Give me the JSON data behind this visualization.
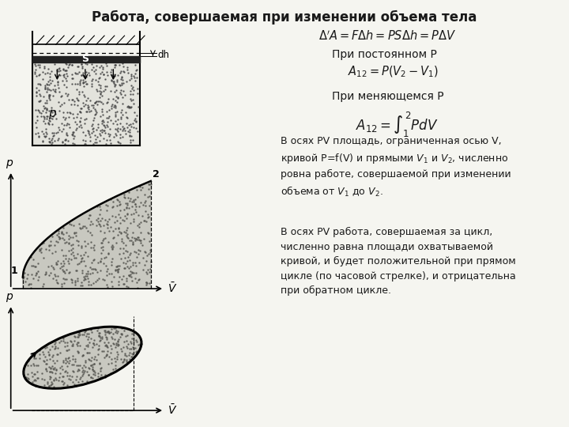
{
  "title": "Работа, совершаемая при изменении объема тела",
  "title_fontsize": 12,
  "bg_color": "#f5f5f0",
  "text_color": "#1a1a1a",
  "formula1": "$\\Delta'A = F\\Delta h = PS\\Delta h = P\\Delta V$",
  "label_const_p": "При постоянном Р",
  "formula2": "$A_{12} = P(V_2 - V_1)$",
  "label_var_p": "При меняющемся Р",
  "formula3": "$A_{12} = \\int_{1}^{2} PdV$",
  "text1": "В осях PV площадь, ограниченная осью V,\nкривой P=f(V) и прямыми $V_1$ и $V_2$, численно\nровна работе, совершаемой при изменении\nобъема от $V_1$ до $V_2$.",
  "text2": "В осях PV работа, совершаемая за цикл,\nчисленно равна площади охватываемой\nкривой, и будет положительной при прямом\nцикле (по часовой стрелке), и отрицательна\nпри обратном цикле.",
  "diagram_bg": "#d8d8d0",
  "stipple_color": "#888880",
  "curve_color": "#111111"
}
